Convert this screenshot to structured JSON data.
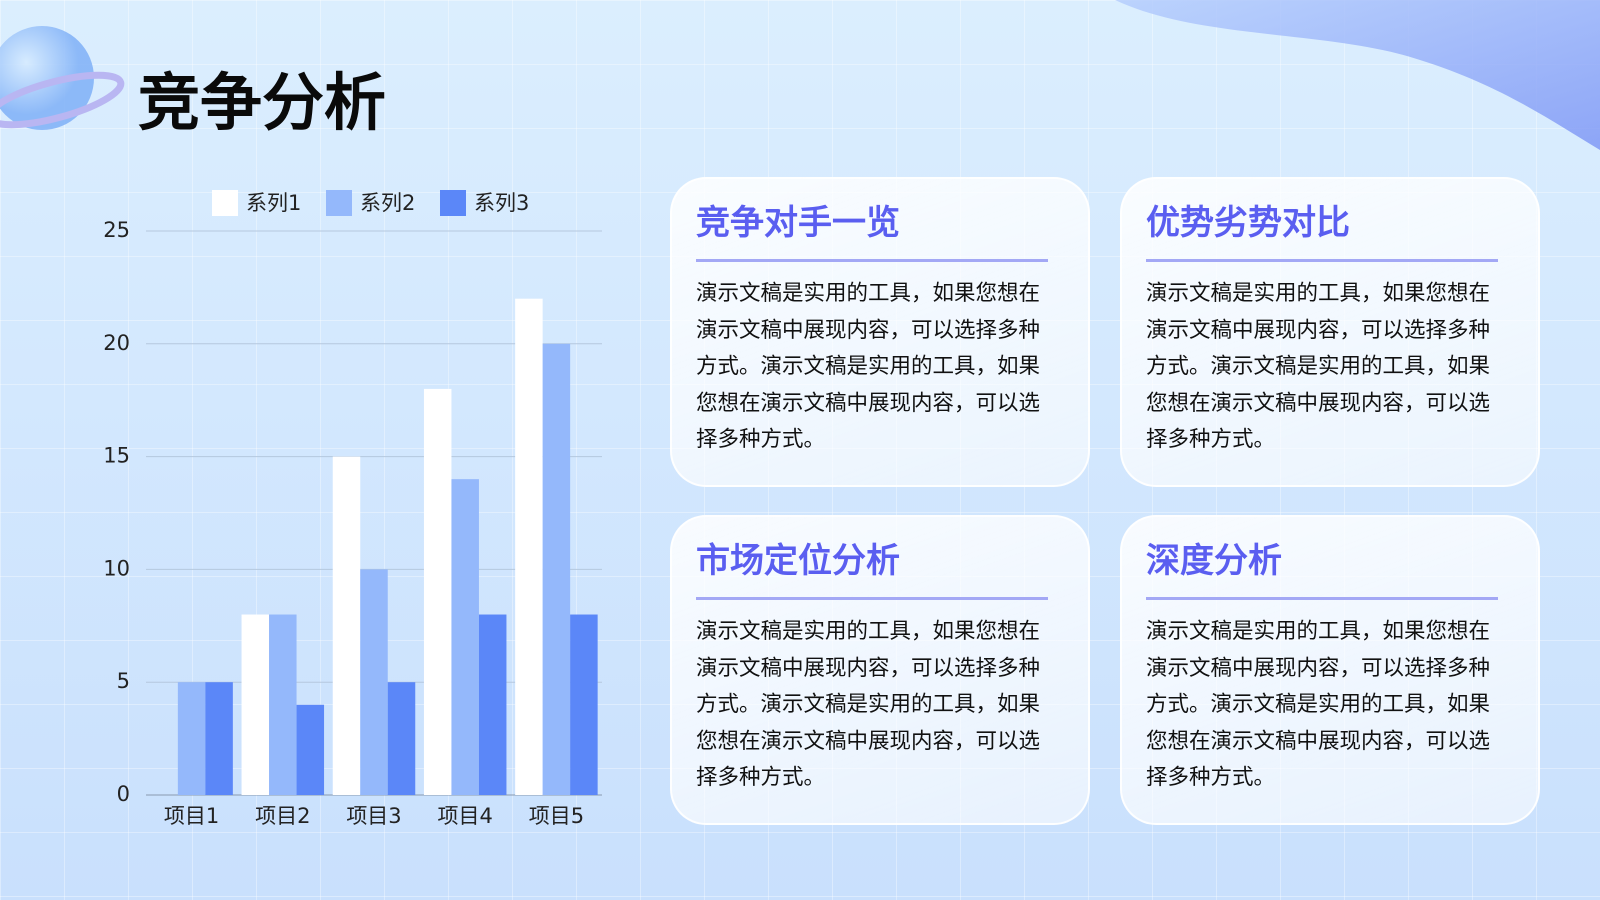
{
  "title": "竞争分析",
  "chart_data": {
    "type": "bar",
    "categories": [
      "项目1",
      "项目2",
      "项目3",
      "项目4",
      "项目5"
    ],
    "series": [
      {
        "name": "系列1",
        "color": "#ffffff",
        "values": [
          0,
          8,
          15,
          18,
          22
        ]
      },
      {
        "name": "系列2",
        "color": "#94b8fb",
        "values": [
          5,
          8,
          10,
          14,
          20
        ]
      },
      {
        "name": "系列3",
        "color": "#5b87f8",
        "values": [
          5,
          4,
          5,
          8,
          8
        ]
      }
    ],
    "ylim": [
      0,
      25
    ],
    "yticks": [
      0,
      5,
      10,
      15,
      20,
      25
    ],
    "grid": true,
    "legend": "top"
  },
  "cards": [
    {
      "title": "竞争对手一览",
      "body": "演示文稿是实用的工具，如果您想在演示文稿中展现内容，可以选择多种方式。演示文稿是实用的工具，如果您想在演示文稿中展现内容，可以选择多种方式。"
    },
    {
      "title": "优势劣势对比",
      "body": "演示文稿是实用的工具，如果您想在演示文稿中展现内容，可以选择多种方式。演示文稿是实用的工具，如果您想在演示文稿中展现内容，可以选择多种方式。"
    },
    {
      "title": "市场定位分析",
      "body": "演示文稿是实用的工具，如果您想在演示文稿中展现内容，可以选择多种方式。演示文稿是实用的工具，如果您想在演示文稿中展现内容，可以选择多种方式。"
    },
    {
      "title": "深度分析",
      "body": "演示文稿是实用的工具，如果您想在演示文稿中展现内容，可以选择多种方式。演示文稿是实用的工具，如果您想在演示文稿中展现内容，可以选择多种方式。"
    }
  ]
}
